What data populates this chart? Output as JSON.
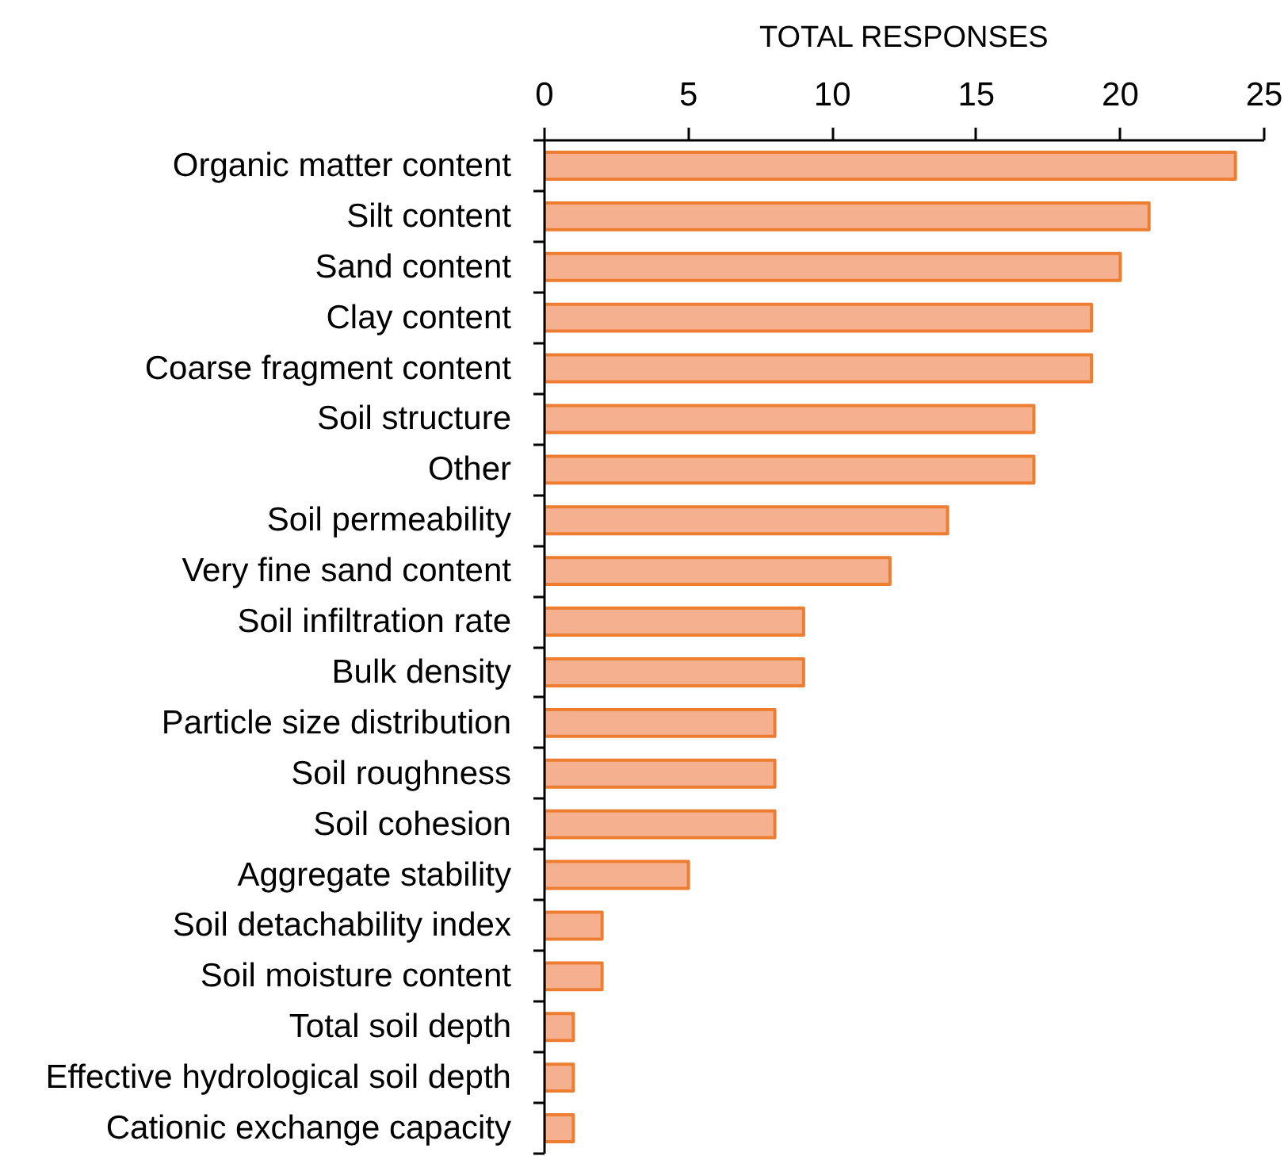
{
  "chart_data": {
    "type": "bar",
    "orientation": "horizontal",
    "xlabel": "TOTAL RESPONSES",
    "categories": [
      "Organic matter content",
      "Silt content",
      "Sand content",
      "Clay content",
      "Coarse fragment content",
      "Soil structure",
      "Other",
      "Soil permeability",
      "Very fine sand content",
      "Soil infiltration rate",
      "Bulk density",
      "Particle size distribution",
      "Soil roughness",
      "Soil cohesion",
      "Aggregate stability",
      "Soil detachability index",
      "Soil moisture content",
      "Total soil depth",
      "Effective hydrological soil depth",
      "Cationic exchange capacity"
    ],
    "values": [
      24,
      21,
      20,
      19,
      19,
      17,
      17,
      14,
      12,
      9,
      9,
      8,
      8,
      8,
      5,
      2,
      2,
      1,
      1,
      1
    ],
    "color": "#f4b08f",
    "xlim": [
      0,
      25
    ],
    "xticks": [
      0,
      5,
      10,
      15,
      20,
      25
    ],
    "grid": false
  }
}
